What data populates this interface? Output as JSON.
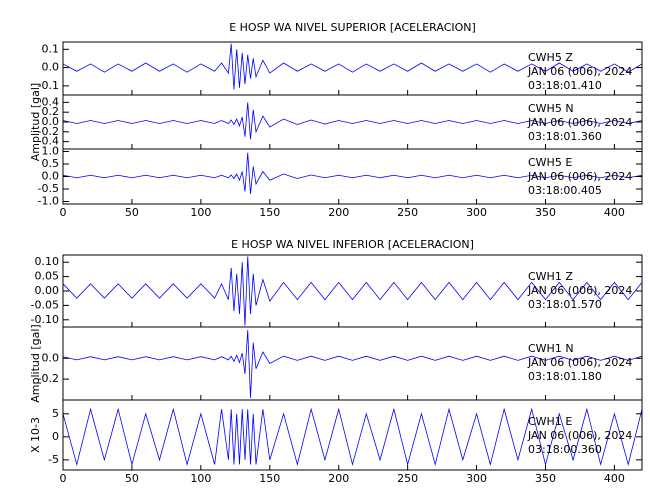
{
  "chart_data": [
    {
      "type": "line",
      "title": "E HOSP WA NIVEL SUPERIOR [ACELERACION]",
      "color": "#0000ff",
      "annotations": [
        "CWH5   Z",
        "JAN 06 (006), 2024",
        "03:18:01.410"
      ],
      "xlim": [
        0,
        420
      ],
      "xticks": [
        0,
        50,
        100,
        150,
        200,
        250,
        300,
        350,
        400
      ],
      "ylim": [
        -0.15,
        0.14
      ],
      "yticks": [
        0.1,
        {
          "value": 0,
          "label": "0.0"
        },
        -0.1
      ],
      "x": [
        0,
        10,
        20,
        30,
        40,
        50,
        60,
        70,
        80,
        90,
        100,
        110,
        115,
        120,
        122,
        124,
        126,
        128,
        130,
        132,
        134,
        136,
        138,
        140,
        145,
        150,
        160,
        170,
        180,
        190,
        200,
        210,
        220,
        230,
        240,
        250,
        260,
        270,
        280,
        290,
        300,
        310,
        320,
        330,
        340,
        350,
        360,
        370,
        380,
        390,
        400,
        410,
        420
      ],
      "values": [
        0.02,
        -0.02,
        0.02,
        -0.025,
        0.02,
        -0.02,
        0.025,
        -0.02,
        0.02,
        -0.025,
        0.02,
        -0.02,
        0.025,
        -0.03,
        0.13,
        -0.12,
        0.1,
        -0.11,
        0.08,
        -0.09,
        0.07,
        -0.06,
        0.05,
        -0.05,
        0.04,
        -0.03,
        0.025,
        -0.02,
        0.02,
        -0.02,
        0.02,
        -0.025,
        0.02,
        -0.02,
        0.02,
        -0.02,
        0.025,
        -0.02,
        0.02,
        -0.02,
        0.02,
        -0.025,
        0.02,
        -0.02,
        0.02,
        -0.02,
        0.025,
        -0.02,
        0.02,
        -0.02,
        0.02,
        -0.025,
        0.02
      ]
    },
    {
      "type": "line",
      "ylabel": "Amplitud [gal]",
      "color": "#0000ff",
      "annotations": [
        "CWH5   N",
        "JAN 06 (006), 2024",
        "03:18:01.360"
      ],
      "xlim": [
        0,
        420
      ],
      "xticks": [
        0,
        50,
        100,
        150,
        200,
        250,
        300,
        350,
        400
      ],
      "ylim": [
        -0.55,
        0.55
      ],
      "yticks": [
        0.4,
        0.2,
        {
          "value": 0,
          "label": "0.0"
        },
        -0.2,
        -0.4
      ],
      "x": [
        0,
        10,
        20,
        30,
        40,
        50,
        60,
        70,
        80,
        90,
        100,
        110,
        115,
        120,
        122,
        124,
        126,
        128,
        130,
        132,
        134,
        136,
        138,
        140,
        145,
        150,
        160,
        170,
        180,
        190,
        200,
        210,
        220,
        230,
        240,
        250,
        260,
        270,
        280,
        290,
        300,
        310,
        320,
        330,
        340,
        350,
        360,
        370,
        380,
        390,
        400,
        410,
        420
      ],
      "values": [
        0.03,
        -0.03,
        0.03,
        -0.03,
        0.03,
        -0.03,
        0.03,
        -0.03,
        0.03,
        -0.03,
        0.03,
        -0.03,
        0.03,
        -0.03,
        0.04,
        -0.05,
        0.06,
        -0.08,
        0.1,
        -0.3,
        0.4,
        -0.35,
        0.25,
        -0.2,
        0.12,
        -0.1,
        0.06,
        -0.05,
        0.04,
        -0.04,
        0.03,
        -0.03,
        0.03,
        -0.03,
        0.03,
        -0.03,
        0.03,
        -0.03,
        0.03,
        -0.03,
        0.03,
        -0.03,
        0.03,
        -0.03,
        0.03,
        -0.03,
        0.03,
        -0.03,
        0.03,
        -0.03,
        0.03,
        -0.03,
        0.03
      ]
    },
    {
      "type": "line",
      "color": "#0000ff",
      "annotations": [
        "CWH5   E",
        "JAN 06 (006), 2024",
        "03:18:00.405"
      ],
      "xlim": [
        0,
        420
      ],
      "xticks": [
        0,
        50,
        100,
        150,
        200,
        250,
        300,
        350,
        400
      ],
      "ylim": [
        -1.1,
        1.1
      ],
      "yticks": [
        {
          "value": 1,
          "label": "1.0"
        },
        0.5,
        {
          "value": 0,
          "label": "0.0"
        },
        -0.5,
        {
          "value": -1,
          "label": "-1.0"
        }
      ],
      "x": [
        0,
        10,
        20,
        30,
        40,
        50,
        60,
        70,
        80,
        90,
        100,
        110,
        115,
        120,
        122,
        124,
        126,
        128,
        130,
        132,
        134,
        136,
        138,
        140,
        145,
        150,
        160,
        170,
        180,
        190,
        200,
        210,
        220,
        230,
        240,
        250,
        260,
        270,
        280,
        290,
        300,
        310,
        320,
        330,
        340,
        350,
        360,
        370,
        380,
        390,
        400,
        410,
        420
      ],
      "values": [
        0.05,
        -0.05,
        0.05,
        -0.05,
        0.05,
        -0.05,
        0.05,
        -0.05,
        0.05,
        -0.05,
        0.05,
        -0.05,
        0.05,
        -0.05,
        0.06,
        -0.08,
        0.1,
        -0.15,
        0.2,
        -0.6,
        0.95,
        -0.7,
        0.4,
        -0.3,
        0.2,
        -0.15,
        0.1,
        -0.08,
        0.06,
        -0.05,
        0.05,
        -0.05,
        0.05,
        -0.05,
        0.05,
        -0.05,
        0.05,
        -0.05,
        0.05,
        -0.05,
        0.05,
        -0.05,
        0.05,
        -0.05,
        0.05,
        -0.05,
        0.05,
        -0.05,
        0.05,
        -0.05,
        0.05,
        -0.05,
        0.05
      ]
    },
    {
      "type": "line",
      "title": "E HOSP WA NIVEL INFERIOR [ACELERACION]",
      "color": "#0000ff",
      "annotations": [
        "CWH1   Z",
        "JAN 06 (006), 2024",
        "03:18:01.570"
      ],
      "xlim": [
        0,
        420
      ],
      "xticks": [
        0,
        50,
        100,
        150,
        200,
        250,
        300,
        350,
        400
      ],
      "ylim": [
        -0.125,
        0.125
      ],
      "yticks": [
        {
          "value": 0.1,
          "label": "0.10"
        },
        {
          "value": 0.05,
          "label": "0.05"
        },
        {
          "value": 0,
          "label": "0.00"
        },
        {
          "value": -0.05,
          "label": "-0.05"
        },
        {
          "value": -0.1,
          "label": "-0.10"
        }
      ],
      "x": [
        0,
        10,
        20,
        30,
        40,
        50,
        60,
        70,
        80,
        90,
        100,
        110,
        115,
        120,
        122,
        124,
        126,
        128,
        130,
        132,
        134,
        136,
        138,
        140,
        145,
        150,
        160,
        170,
        180,
        190,
        200,
        210,
        220,
        230,
        240,
        250,
        260,
        270,
        280,
        290,
        300,
        310,
        320,
        330,
        340,
        350,
        360,
        370,
        380,
        390,
        400,
        410,
        420
      ],
      "values": [
        0.025,
        -0.025,
        0.025,
        -0.025,
        0.025,
        -0.025,
        0.025,
        -0.025,
        0.025,
        -0.025,
        0.025,
        -0.025,
        0.025,
        -0.03,
        0.08,
        -0.07,
        0.06,
        -0.08,
        0.1,
        -0.12,
        0.12,
        -0.08,
        0.06,
        -0.05,
        0.04,
        -0.035,
        0.03,
        -0.03,
        0.03,
        -0.03,
        0.03,
        -0.03,
        0.03,
        -0.03,
        0.03,
        -0.03,
        0.03,
        -0.03,
        0.03,
        -0.03,
        0.03,
        -0.03,
        0.03,
        -0.03,
        0.03,
        -0.03,
        0.03,
        -0.03,
        0.03,
        -0.03,
        0.03,
        -0.03,
        0.03
      ]
    },
    {
      "type": "line",
      "ylabel": "Amplitud [gal]",
      "color": "#0000ff",
      "annotations": [
        "CWH1   N",
        "JAN 06 (006), 2024",
        "03:18:01.180"
      ],
      "xlim": [
        0,
        420
      ],
      "xticks": [
        0,
        50,
        100,
        150,
        200,
        250,
        300,
        350,
        400
      ],
      "ylim": [
        -0.4,
        0.3
      ],
      "yticks": [
        {
          "value": 0,
          "label": "0.0"
        },
        -0.2
      ],
      "x": [
        0,
        10,
        20,
        30,
        40,
        50,
        60,
        70,
        80,
        90,
        100,
        110,
        115,
        120,
        122,
        124,
        126,
        128,
        130,
        132,
        134,
        136,
        138,
        140,
        145,
        150,
        160,
        170,
        180,
        190,
        200,
        210,
        220,
        230,
        240,
        250,
        260,
        270,
        280,
        290,
        300,
        310,
        320,
        330,
        340,
        350,
        360,
        370,
        380,
        390,
        400,
        410,
        420
      ],
      "values": [
        0.015,
        -0.015,
        0.015,
        -0.015,
        0.015,
        -0.015,
        0.015,
        -0.015,
        0.015,
        -0.015,
        0.015,
        -0.015,
        0.015,
        -0.015,
        0.02,
        -0.03,
        0.03,
        -0.04,
        0.05,
        -0.15,
        0.27,
        -0.38,
        0.15,
        -0.1,
        0.06,
        -0.05,
        0.02,
        -0.02,
        0.02,
        -0.02,
        0.02,
        -0.02,
        0.02,
        -0.02,
        0.02,
        -0.02,
        0.02,
        -0.02,
        0.02,
        -0.02,
        0.02,
        -0.02,
        0.02,
        -0.02,
        0.02,
        -0.02,
        0.02,
        -0.02,
        0.02,
        -0.02,
        0.02,
        -0.02,
        0.02
      ]
    },
    {
      "type": "line",
      "ylabel": "X 10-3",
      "color": "#0000ff",
      "annotations": [
        "CWH1   E",
        "JAN 06 (006), 2024",
        "03:18:00.360"
      ],
      "xlim": [
        0,
        420
      ],
      "xticks": [
        0,
        50,
        100,
        150,
        200,
        250,
        300,
        350,
        400
      ],
      "ylim": [
        -7.2,
        8
      ],
      "yticks": [
        5,
        0,
        -5
      ],
      "x": [
        0,
        10,
        20,
        30,
        40,
        50,
        60,
        70,
        80,
        90,
        100,
        110,
        115,
        120,
        122,
        124,
        126,
        128,
        130,
        132,
        134,
        136,
        138,
        140,
        145,
        150,
        160,
        170,
        180,
        190,
        200,
        210,
        220,
        230,
        240,
        250,
        260,
        270,
        280,
        290,
        300,
        310,
        320,
        330,
        340,
        350,
        360,
        370,
        380,
        390,
        400,
        410,
        420
      ],
      "values": [
        5,
        -6,
        6,
        -5,
        6,
        -6,
        5,
        -5,
        6,
        -6,
        5,
        -6,
        6,
        -5,
        6,
        -6,
        5,
        -6,
        6,
        -5,
        6,
        -6,
        5,
        -6,
        6,
        -5,
        5,
        -6,
        6,
        -5,
        6,
        -6,
        5,
        -5,
        6,
        -6,
        5,
        -6,
        6,
        -5,
        5,
        -6,
        6,
        -5,
        6,
        -6,
        5,
        -5,
        6,
        -6,
        5,
        -6,
        6
      ]
    }
  ]
}
